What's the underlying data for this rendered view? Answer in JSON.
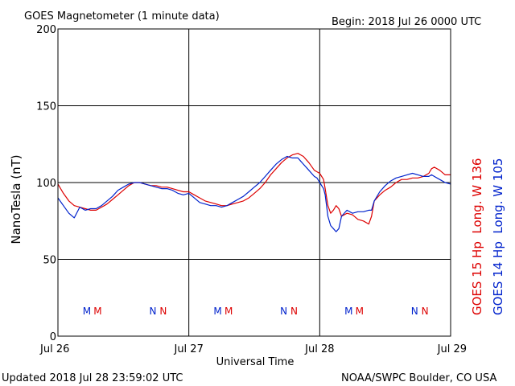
{
  "header": {
    "title": "GOES Magnetometer (1 minute data)",
    "begin": "Begin:  2018 Jul 26 0000 UTC"
  },
  "footer": {
    "updated": "Updated 2018 Jul 28 23:59:02 UTC",
    "source": "NOAA/SWPC Boulder, CO USA"
  },
  "chart_data": {
    "type": "line",
    "title": "GOES Magnetometer (1 minute data)",
    "xlabel": "Universal Time",
    "ylabel": "NanoTesla (nT)",
    "ylim": [
      0,
      200
    ],
    "xlim": [
      0,
      72
    ],
    "x_unit": "hours since 2018 Jul 26 0000 UTC",
    "yticks": [
      "0",
      "50",
      "100",
      "150",
      "200"
    ],
    "xticks": [
      {
        "x": 0,
        "label": "Jul 26"
      },
      {
        "x": 24,
        "label": "Jul 27"
      },
      {
        "x": 48,
        "label": "Jul 28"
      },
      {
        "x": 72,
        "label": "Jul 29"
      }
    ],
    "grid": true,
    "series": [
      {
        "name": "GOES 15 Hp  Long. W 136",
        "color": "#dd0000",
        "x": [
          0,
          1,
          2,
          3,
          4,
          5,
          6,
          7,
          8,
          9,
          10,
          11,
          12,
          13,
          14,
          15,
          16,
          17,
          18,
          19,
          20,
          21,
          22,
          23,
          24,
          25,
          26,
          27,
          28,
          29,
          30,
          31,
          32,
          33,
          34,
          35,
          36,
          37,
          38,
          39,
          40,
          41,
          42,
          43,
          44,
          44.5,
          45,
          46,
          47,
          47.5,
          48,
          48.7,
          49,
          49.5,
          50,
          50.5,
          51,
          51.5,
          52,
          53,
          54,
          55,
          56,
          57,
          57.5,
          58,
          59,
          60,
          61,
          62,
          63,
          64,
          65,
          66,
          67,
          68,
          68.5,
          69,
          70,
          71,
          72
        ],
        "y": [
          99,
          93,
          88,
          85,
          84,
          83,
          82,
          82,
          84,
          86,
          89,
          92,
          95,
          98,
          100,
          100,
          99,
          98,
          98,
          97,
          97,
          96,
          95,
          94,
          94,
          92,
          90,
          88,
          87,
          86,
          85,
          85,
          86,
          87,
          88,
          90,
          93,
          96,
          100,
          105,
          109,
          113,
          116,
          118,
          119,
          118,
          117,
          113,
          108,
          107,
          106,
          102,
          96,
          85,
          80,
          82,
          85,
          83,
          78,
          80,
          79,
          76,
          75,
          73,
          78,
          88,
          92,
          95,
          97,
          100,
          102,
          102,
          103,
          103,
          104,
          106,
          109,
          110,
          108,
          105,
          105
        ]
      },
      {
        "name": "GOES 14 Hp  Long. W 105",
        "color": "#0022cc",
        "x": [
          0,
          1,
          2,
          3,
          4,
          5,
          6,
          7,
          8,
          9,
          10,
          11,
          12,
          13,
          14,
          15,
          16,
          17,
          18,
          19,
          20,
          21,
          22,
          23,
          24,
          25,
          26,
          27,
          28,
          29,
          30,
          31,
          32,
          33,
          34,
          35,
          36,
          37,
          38,
          39,
          40,
          41,
          42,
          43,
          44,
          44.5,
          45,
          46,
          47,
          47.5,
          48,
          48.7,
          49,
          49.5,
          50,
          50.5,
          51,
          51.5,
          52,
          53,
          54,
          55,
          56,
          57,
          57.5,
          58,
          59,
          60,
          61,
          62,
          63,
          64,
          65,
          66,
          67,
          68,
          68.5,
          69,
          70,
          71,
          72
        ],
        "y": [
          90,
          85,
          80,
          77,
          84,
          82,
          83,
          83,
          85,
          88,
          91,
          95,
          97,
          99,
          100,
          100,
          99,
          98,
          97,
          96,
          96,
          95,
          93,
          92,
          93,
          90,
          87,
          86,
          85,
          85,
          84,
          85,
          87,
          89,
          91,
          94,
          97,
          100,
          104,
          108,
          112,
          115,
          117,
          116,
          116,
          114,
          112,
          108,
          104,
          103,
          100,
          96,
          92,
          78,
          72,
          70,
          68,
          70,
          78,
          82,
          80,
          81,
          81,
          82,
          82,
          88,
          94,
          98,
          101,
          103,
          104,
          105,
          106,
          105,
          104,
          104,
          105,
          104,
          102,
          100,
          99
        ]
      }
    ],
    "markers": [
      {
        "letter": "M",
        "x": 5.3,
        "color": "#0022cc"
      },
      {
        "letter": "M",
        "x": 7.3,
        "color": "#dd0000"
      },
      {
        "letter": "N",
        "x": 17.4,
        "color": "#0022cc"
      },
      {
        "letter": "N",
        "x": 19.3,
        "color": "#dd0000"
      },
      {
        "letter": "M",
        "x": 29.3,
        "color": "#0022cc"
      },
      {
        "letter": "M",
        "x": 31.3,
        "color": "#dd0000"
      },
      {
        "letter": "N",
        "x": 41.4,
        "color": "#0022cc"
      },
      {
        "letter": "N",
        "x": 43.3,
        "color": "#dd0000"
      },
      {
        "letter": "M",
        "x": 53.3,
        "color": "#0022cc"
      },
      {
        "letter": "M",
        "x": 55.3,
        "color": "#dd0000"
      },
      {
        "letter": "N",
        "x": 65.4,
        "color": "#0022cc"
      },
      {
        "letter": "N",
        "x": 67.3,
        "color": "#dd0000"
      }
    ]
  }
}
